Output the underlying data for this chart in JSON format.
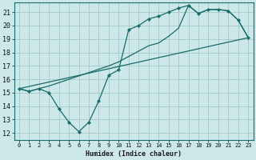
{
  "title": "",
  "xlabel": "Humidex (Indice chaleur)",
  "background_color": "#cce8e8",
  "grid_color": "#aacccc",
  "line_color": "#1a6b6b",
  "xlim": [
    -0.5,
    23.5
  ],
  "ylim": [
    11.5,
    21.7
  ],
  "xticks": [
    0,
    1,
    2,
    3,
    4,
    5,
    6,
    7,
    8,
    9,
    10,
    11,
    12,
    13,
    14,
    15,
    16,
    17,
    18,
    19,
    20,
    21,
    22,
    23
  ],
  "yticks": [
    12,
    13,
    14,
    15,
    16,
    17,
    18,
    19,
    20,
    21
  ],
  "line1_x": [
    0,
    1,
    2,
    3,
    4,
    5,
    6,
    7,
    8,
    9,
    10,
    11,
    12,
    13,
    14,
    15,
    16,
    17,
    18,
    19,
    20,
    21,
    22,
    23
  ],
  "line1_y": [
    15.3,
    15.1,
    15.3,
    15.0,
    13.8,
    12.8,
    12.1,
    12.8,
    14.4,
    16.3,
    16.7,
    19.7,
    20.0,
    20.5,
    20.7,
    21.0,
    21.3,
    21.5,
    20.9,
    21.2,
    21.2,
    21.1,
    20.4,
    19.1
  ],
  "line2_x": [
    0,
    1,
    2,
    3,
    9,
    10,
    11,
    12,
    13,
    14,
    15,
    16,
    17,
    18,
    19,
    20,
    21,
    22,
    23
  ],
  "line2_y": [
    15.3,
    15.1,
    15.3,
    15.5,
    17.0,
    17.3,
    17.7,
    18.1,
    18.5,
    18.7,
    19.2,
    19.8,
    21.5,
    20.9,
    21.2,
    21.2,
    21.1,
    20.4,
    19.1
  ],
  "line3_x": [
    0,
    23
  ],
  "line3_y": [
    15.3,
    19.1
  ]
}
